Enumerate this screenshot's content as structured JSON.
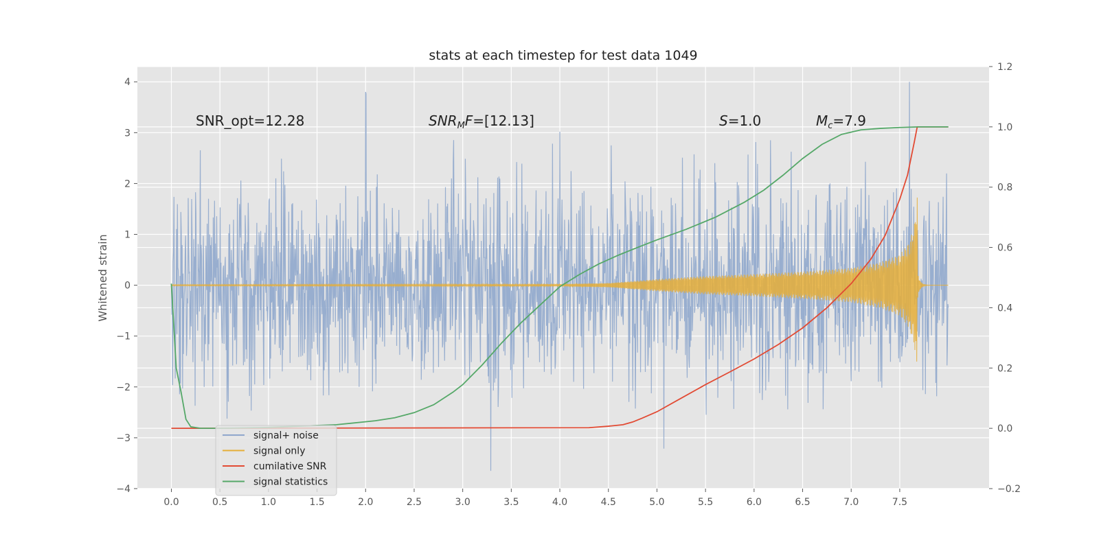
{
  "chart_data": {
    "type": "line",
    "title": "stats at each timestep for test data 1049",
    "ylabel": "Whitened strain",
    "xlabel": "",
    "xlim": [
      -0.35,
      8.42
    ],
    "ylim": [
      -4.0,
      4.3
    ],
    "y2lim": [
      -0.2,
      1.2
    ],
    "x_ticks": [
      "0.0",
      "0.5",
      "1.0",
      "1.5",
      "2.0",
      "2.5",
      "3.0",
      "3.5",
      "4.0",
      "4.5",
      "5.0",
      "5.5",
      "6.0",
      "6.5",
      "7.0",
      "7.5"
    ],
    "y_ticks": [
      "4",
      "3",
      "2",
      "1",
      "0",
      "−1",
      "−2",
      "−3",
      "−4"
    ],
    "y2_ticks": [
      "1.2",
      "1.0",
      "0.8",
      "0.6",
      "0.4",
      "0.2",
      "0.0",
      "−0.2"
    ],
    "grid": true,
    "legend_position": "lower-left",
    "annotations": [
      {
        "text": "SNR_opt=12.28",
        "x": 0.2,
        "y": 3.2
      },
      {
        "text": "SNR_MF=[12.13]",
        "x": 2.6,
        "y": 3.2
      },
      {
        "text": "S=1.0",
        "x": 5.6,
        "y": 3.2
      },
      {
        "text": "M_c=7.9",
        "x": 6.6,
        "y": 3.2
      }
    ],
    "series": [
      {
        "name": "signal+ noise",
        "axis": "left",
        "color": "#8fa7cc",
        "kind": "noise",
        "x_range": [
          0.0,
          8.0
        ],
        "std": 1.0,
        "min_peak": -3.65,
        "max_peak": 4.0
      },
      {
        "name": "signal only",
        "axis": "left",
        "color": "#e5ae38",
        "kind": "chirp",
        "x_range": [
          0.0,
          8.0
        ],
        "merger_x": 7.68,
        "peak": 1.75,
        "envelope": [
          [
            0.0,
            0.01
          ],
          [
            4.0,
            0.02
          ],
          [
            4.5,
            0.04
          ],
          [
            5.0,
            0.12
          ],
          [
            5.5,
            0.18
          ],
          [
            6.0,
            0.22
          ],
          [
            6.5,
            0.27
          ],
          [
            7.0,
            0.34
          ],
          [
            7.3,
            0.45
          ],
          [
            7.5,
            0.6
          ],
          [
            7.6,
            0.85
          ],
          [
            7.65,
            1.2
          ],
          [
            7.68,
            1.75
          ]
        ]
      },
      {
        "name": "cumilative SNR",
        "axis": "right",
        "color": "#e24a33",
        "x": [
          0.0,
          4.3,
          4.5,
          4.65,
          4.75,
          4.85,
          5.0,
          5.25,
          5.5,
          5.75,
          6.0,
          6.25,
          6.5,
          6.75,
          7.0,
          7.2,
          7.35,
          7.5,
          7.58,
          7.65,
          7.68,
          8.0
        ],
        "y": [
          0.0,
          0.002,
          0.007,
          0.012,
          0.021,
          0.034,
          0.055,
          0.1,
          0.145,
          0.187,
          0.23,
          0.278,
          0.333,
          0.4,
          0.48,
          0.56,
          0.64,
          0.76,
          0.84,
          0.95,
          1.0,
          1.0
        ]
      },
      {
        "name": "signal statistics",
        "axis": "right",
        "color": "#55a868",
        "x": [
          0.0,
          0.05,
          0.1,
          0.15,
          0.2,
          0.3,
          0.5,
          1.0,
          1.7,
          2.1,
          2.3,
          2.5,
          2.7,
          2.9,
          3.0,
          3.2,
          3.4,
          3.6,
          3.8,
          4.0,
          4.2,
          4.4,
          4.6,
          4.8,
          5.0,
          5.3,
          5.6,
          5.9,
          6.1,
          6.3,
          6.5,
          6.7,
          6.9,
          7.1,
          7.3,
          7.5,
          7.7,
          8.0
        ],
        "y": [
          0.48,
          0.2,
          0.12,
          0.03,
          0.005,
          0.0,
          0.0,
          0.003,
          0.012,
          0.025,
          0.035,
          0.052,
          0.078,
          0.12,
          0.145,
          0.21,
          0.283,
          0.35,
          0.41,
          0.47,
          0.51,
          0.545,
          0.574,
          0.6,
          0.625,
          0.66,
          0.7,
          0.75,
          0.79,
          0.84,
          0.895,
          0.942,
          0.975,
          0.99,
          0.995,
          0.998,
          1.0,
          1.0
        ]
      }
    ]
  }
}
